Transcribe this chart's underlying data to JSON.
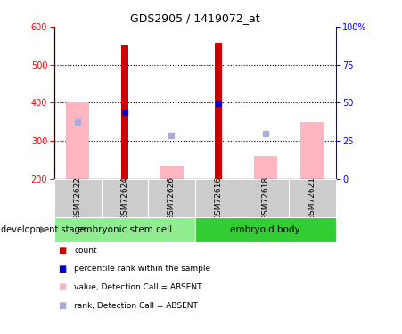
{
  "title": "GDS2905 / 1419072_at",
  "samples": [
    "GSM72622",
    "GSM72624",
    "GSM72626",
    "GSM72616",
    "GSM72618",
    "GSM72621"
  ],
  "ylim_left": [
    200,
    600
  ],
  "ylim_right": [
    0,
    100
  ],
  "yticks_left": [
    200,
    300,
    400,
    500,
    600
  ],
  "yticks_right": [
    0,
    25,
    50,
    75,
    100
  ],
  "red_bars": [
    null,
    550,
    null,
    558,
    null,
    null
  ],
  "pink_bars": [
    400,
    null,
    235,
    null,
    260,
    350
  ],
  "blue_squares": [
    null,
    375,
    null,
    398,
    null,
    null
  ],
  "light_blue_squares": [
    350,
    null,
    315,
    null,
    318,
    null
  ],
  "bar_bottom": 200,
  "red_color": "#CC0000",
  "pink_color": "#FFB6C1",
  "blue_color": "#0000CD",
  "light_blue_color": "#AAAADD",
  "sample_bg": "#CCCCCC",
  "group1_color": "#90EE90",
  "group2_color": "#32CD32",
  "group_label": "development stage",
  "group1_label": "embryonic stem cell",
  "group2_label": "embryoid body",
  "legend_items": [
    "count",
    "percentile rank within the sample",
    "value, Detection Call = ABSENT",
    "rank, Detection Call = ABSENT"
  ],
  "legend_colors": [
    "#CC0000",
    "#0000CD",
    "#FFB6C1",
    "#AAAADD"
  ],
  "grid_lines": [
    300,
    400,
    500
  ],
  "pink_bar_width": 0.5,
  "red_bar_width": 0.15
}
